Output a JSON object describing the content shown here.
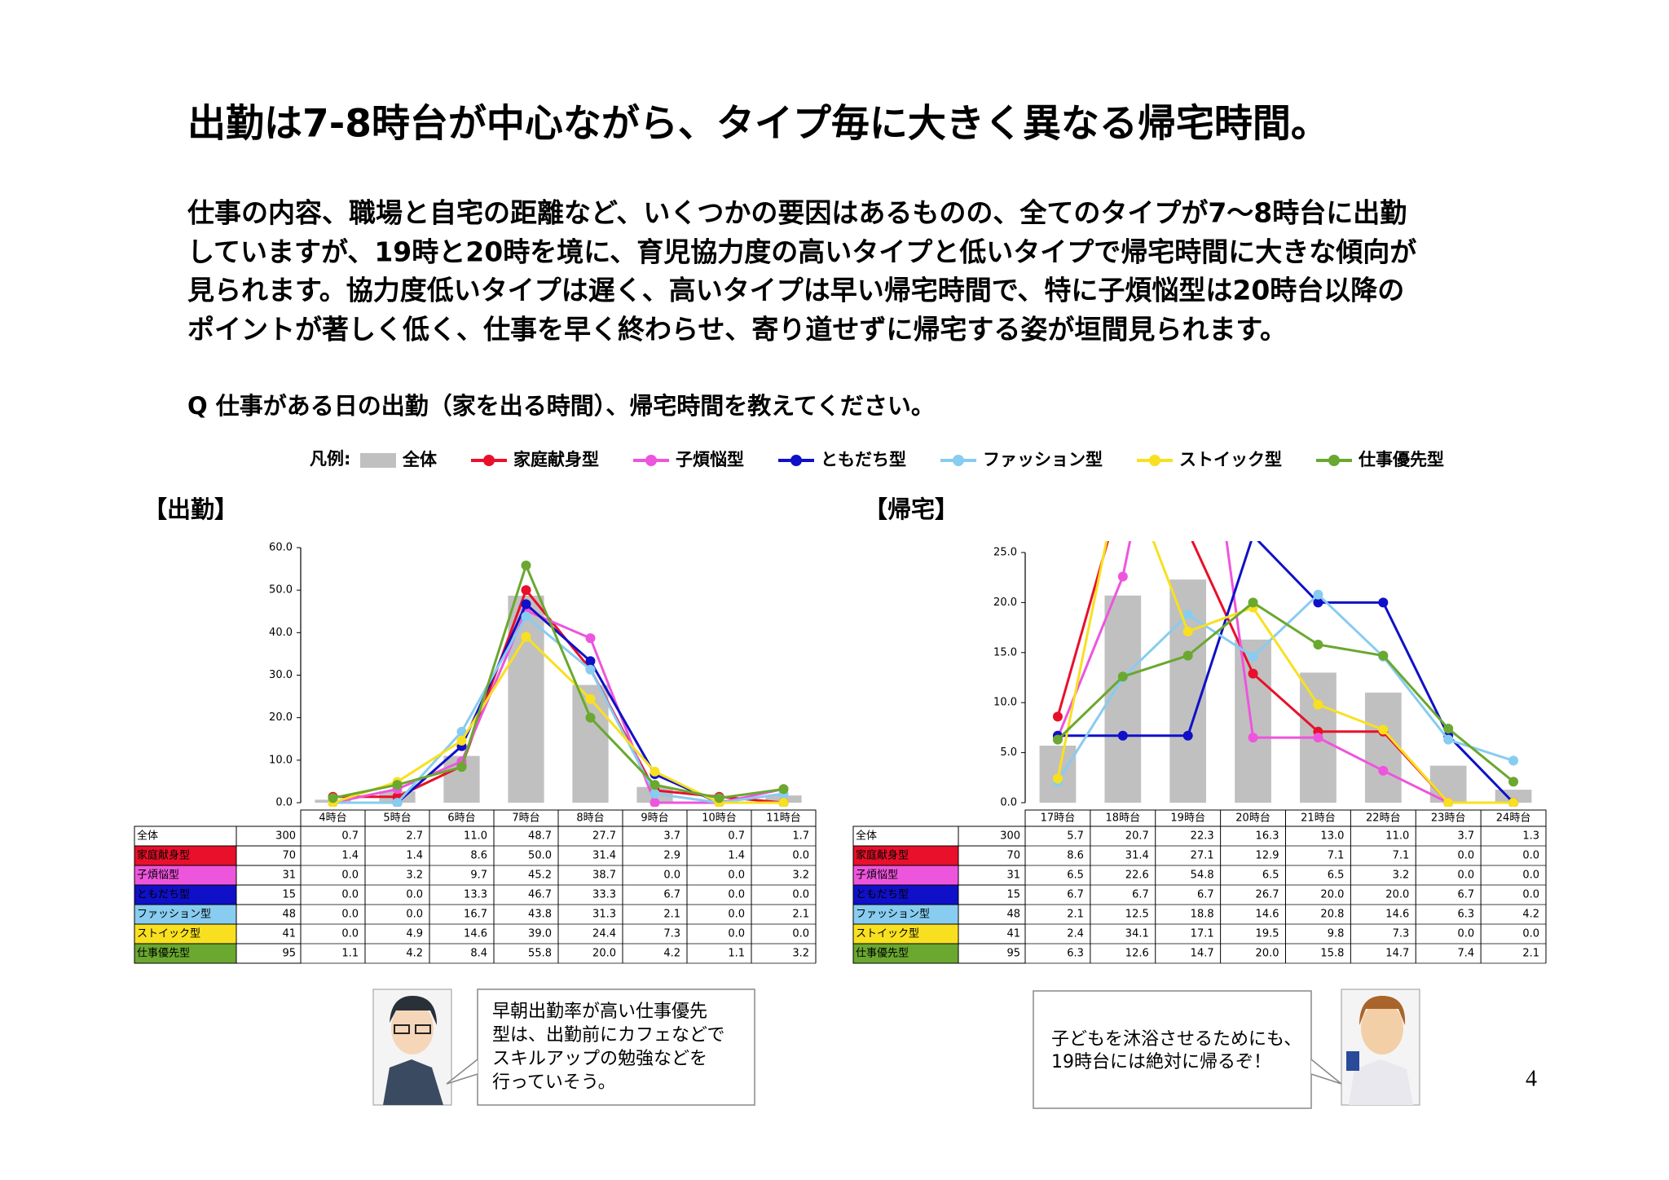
{
  "title": "出勤は7-8時台が中心ながら、タイプ毎に大きく異なる帰宅時間。",
  "body": [
    "仕事の内容、職場と自宅の距離など、いくつかの要因はあるものの、全てのタイプが7～8時台に出勤",
    "していますが、19時と20時を境に、育児協力度の高いタイプと低いタイプで帰宅時間に大きな傾向が",
    "見られます。協力度低いタイプは遅く、高いタイプは早い帰宅時間で、特に子煩悩型は20時台以降の",
    "ポイントが著しく低く、仕事を早く終わらせ、寄り道せずに帰宅する姿が垣間見られます。"
  ],
  "question": "Q 仕事がある日の出勤（家を出る時間）、帰宅時間を教えてください。",
  "legend_label": "凡例:",
  "chart_data": [
    {
      "type": "combo",
      "title": "【出勤】",
      "categories": [
        "4時台",
        "5時台",
        "6時台",
        "7時台",
        "8時台",
        "9時台",
        "10時台",
        "11時台"
      ],
      "ylim": [
        0,
        60
      ],
      "yticks": [
        {
          "value": 0,
          "label": "0.0"
        },
        {
          "value": 10,
          "label": "10.0"
        },
        {
          "value": 20,
          "label": "20.0"
        },
        {
          "value": 30,
          "label": "30.0"
        },
        {
          "value": 40,
          "label": "40.0"
        },
        {
          "value": 50,
          "label": "50.0"
        },
        {
          "value": 60,
          "label": "60.0"
        }
      ],
      "series": [
        {
          "name": "全体",
          "type": "bar",
          "color": "#c0c0c0",
          "n": 300,
          "values": [
            0.7,
            2.7,
            11.0,
            48.7,
            27.7,
            3.7,
            0.7,
            1.7
          ],
          "value_labels": [
            "0.7",
            "2.7",
            "11.0",
            "48.7",
            "27.7",
            "3.7",
            "0.7",
            "1.7"
          ]
        },
        {
          "name": "家庭献身型",
          "type": "line",
          "color": "#e8102a",
          "n": 70,
          "values": [
            1.4,
            1.4,
            8.6,
            50.0,
            31.4,
            2.9,
            1.4,
            0.0
          ],
          "value_labels": [
            "1.4",
            "1.4",
            "8.6",
            "50.0",
            "31.4",
            "2.9",
            "1.4",
            "0.0"
          ]
        },
        {
          "name": "子煩悩型",
          "type": "line",
          "color": "#ee55dd",
          "n": 31,
          "values": [
            0.0,
            3.2,
            9.7,
            45.2,
            38.7,
            0.0,
            0.0,
            3.2
          ],
          "value_labels": [
            "0.0",
            "3.2",
            "9.7",
            "45.2",
            "38.7",
            "0.0",
            "0.0",
            "3.2"
          ]
        },
        {
          "name": "ともだち型",
          "type": "line",
          "color": "#1010c8",
          "n": 15,
          "values": [
            0.0,
            0.0,
            13.3,
            46.7,
            33.3,
            6.7,
            0.0,
            0.0
          ],
          "value_labels": [
            "0.0",
            "0.0",
            "13.3",
            "46.7",
            "33.3",
            "6.7",
            "0.0",
            "0.0"
          ]
        },
        {
          "name": "ファッション型",
          "type": "line",
          "color": "#88ccf0",
          "n": 48,
          "values": [
            0.0,
            0.0,
            16.7,
            43.8,
            31.3,
            2.1,
            0.0,
            2.1
          ],
          "value_labels": [
            "0.0",
            "0.0",
            "16.7",
            "43.8",
            "31.3",
            "2.1",
            "0.0",
            "2.1"
          ]
        },
        {
          "name": "ストイック型",
          "type": "line",
          "color": "#f8e020",
          "n": 41,
          "values": [
            0.0,
            4.9,
            14.6,
            39.0,
            24.4,
            7.3,
            0.0,
            0.0
          ],
          "value_labels": [
            "0.0",
            "4.9",
            "14.6",
            "39.0",
            "24.4",
            "7.3",
            "0.0",
            "0.0"
          ]
        },
        {
          "name": "仕事優先型",
          "type": "line",
          "color": "#6aa830",
          "n": 95,
          "values": [
            1.1,
            4.2,
            8.4,
            55.8,
            20.0,
            4.2,
            1.1,
            3.2
          ],
          "value_labels": [
            "1.1",
            "4.2",
            "8.4",
            "55.8",
            "20.0",
            "4.2",
            "1.1",
            "3.2"
          ]
        }
      ]
    },
    {
      "type": "combo",
      "title": "【帰宅】",
      "categories": [
        "17時台",
        "18時台",
        "19時台",
        "20時台",
        "21時台",
        "22時台",
        "23時台",
        "24時台"
      ],
      "ylim": [
        0,
        25
      ],
      "yticks": [
        {
          "value": 0,
          "label": "0.0"
        },
        {
          "value": 5,
          "label": "5.0"
        },
        {
          "value": 10,
          "label": "10.0"
        },
        {
          "value": 15,
          "label": "15.0"
        },
        {
          "value": 20,
          "label": "20.0"
        },
        {
          "value": 25,
          "label": "25.0"
        }
      ],
      "series": [
        {
          "name": "全体",
          "type": "bar",
          "color": "#c0c0c0",
          "n": 300,
          "values": [
            5.7,
            20.7,
            22.3,
            16.3,
            13.0,
            11.0,
            3.7,
            1.3
          ],
          "value_labels": [
            "5.7",
            "20.7",
            "22.3",
            "16.3",
            "13.0",
            "11.0",
            "3.7",
            "1.3"
          ]
        },
        {
          "name": "家庭献身型",
          "type": "line",
          "color": "#e8102a",
          "n": 70,
          "values": [
            8.6,
            31.4,
            27.1,
            12.9,
            7.1,
            7.1,
            0.0,
            0.0
          ],
          "value_labels": [
            "8.6",
            "31.4",
            "27.1",
            "12.9",
            "7.1",
            "7.1",
            "0.0",
            "0.0"
          ]
        },
        {
          "name": "子煩悩型",
          "type": "line",
          "color": "#ee55dd",
          "n": 31,
          "values": [
            6.5,
            22.6,
            54.8,
            6.5,
            6.5,
            3.2,
            0.0,
            0.0
          ],
          "value_labels": [
            "6.5",
            "22.6",
            "54.8",
            "6.5",
            "6.5",
            "3.2",
            "0.0",
            "0.0"
          ]
        },
        {
          "name": "ともだち型",
          "type": "line",
          "color": "#1010c8",
          "n": 15,
          "values": [
            6.7,
            6.7,
            6.7,
            26.7,
            20.0,
            20.0,
            6.7,
            0.0
          ],
          "value_labels": [
            "6.7",
            "6.7",
            "6.7",
            "26.7",
            "20.0",
            "20.0",
            "6.7",
            "0.0"
          ]
        },
        {
          "name": "ファッション型",
          "type": "line",
          "color": "#88ccf0",
          "n": 48,
          "values": [
            2.1,
            12.5,
            18.8,
            14.6,
            20.8,
            14.6,
            6.3,
            4.2
          ],
          "value_labels": [
            "2.1",
            "12.5",
            "18.8",
            "14.6",
            "20.8",
            "14.6",
            "6.3",
            "4.2"
          ]
        },
        {
          "name": "ストイック型",
          "type": "line",
          "color": "#f8e020",
          "n": 41,
          "values": [
            2.4,
            34.1,
            17.1,
            19.5,
            9.8,
            7.3,
            0.0,
            0.0
          ],
          "value_labels": [
            "2.4",
            "34.1",
            "17.1",
            "19.5",
            "9.8",
            "7.3",
            "0.0",
            "0.0"
          ]
        },
        {
          "name": "仕事優先型",
          "type": "line",
          "color": "#6aa830",
          "n": 95,
          "values": [
            6.3,
            12.6,
            14.7,
            20.0,
            15.8,
            14.7,
            7.4,
            2.1
          ],
          "value_labels": [
            "6.3",
            "12.6",
            "14.7",
            "20.0",
            "15.8",
            "14.7",
            "7.4",
            "2.1"
          ]
        }
      ]
    }
  ],
  "bubbles": [
    [
      "早朝出勤率が高い仕事優先",
      "型は、出勤前にカフェなどで",
      "スキルアップの勉強などを",
      "行っていそう。"
    ],
    [
      "子どもを沐浴させるためにも、",
      "19時台には絶対に帰るぞ！"
    ]
  ],
  "page_number": "4"
}
